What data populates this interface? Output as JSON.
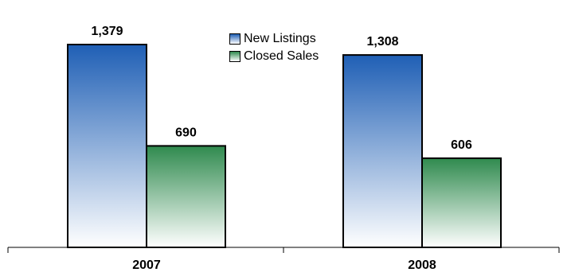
{
  "chart_data": {
    "type": "bar",
    "categories": [
      "2007",
      "2008"
    ],
    "series": [
      {
        "name": "New Listings",
        "values": [
          1379,
          1308
        ],
        "labels": [
          "1,379",
          "1,308"
        ],
        "color_top": "#1f5fb5",
        "color_bottom": "#ffffff"
      },
      {
        "name": "Closed Sales",
        "values": [
          690,
          606
        ],
        "labels": [
          "690",
          "606"
        ],
        "color_top": "#2f8a4e",
        "color_bottom": "#ffffff"
      }
    ],
    "ylim": [
      0,
      1379
    ],
    "grid": false,
    "legend_position": "top-center"
  }
}
